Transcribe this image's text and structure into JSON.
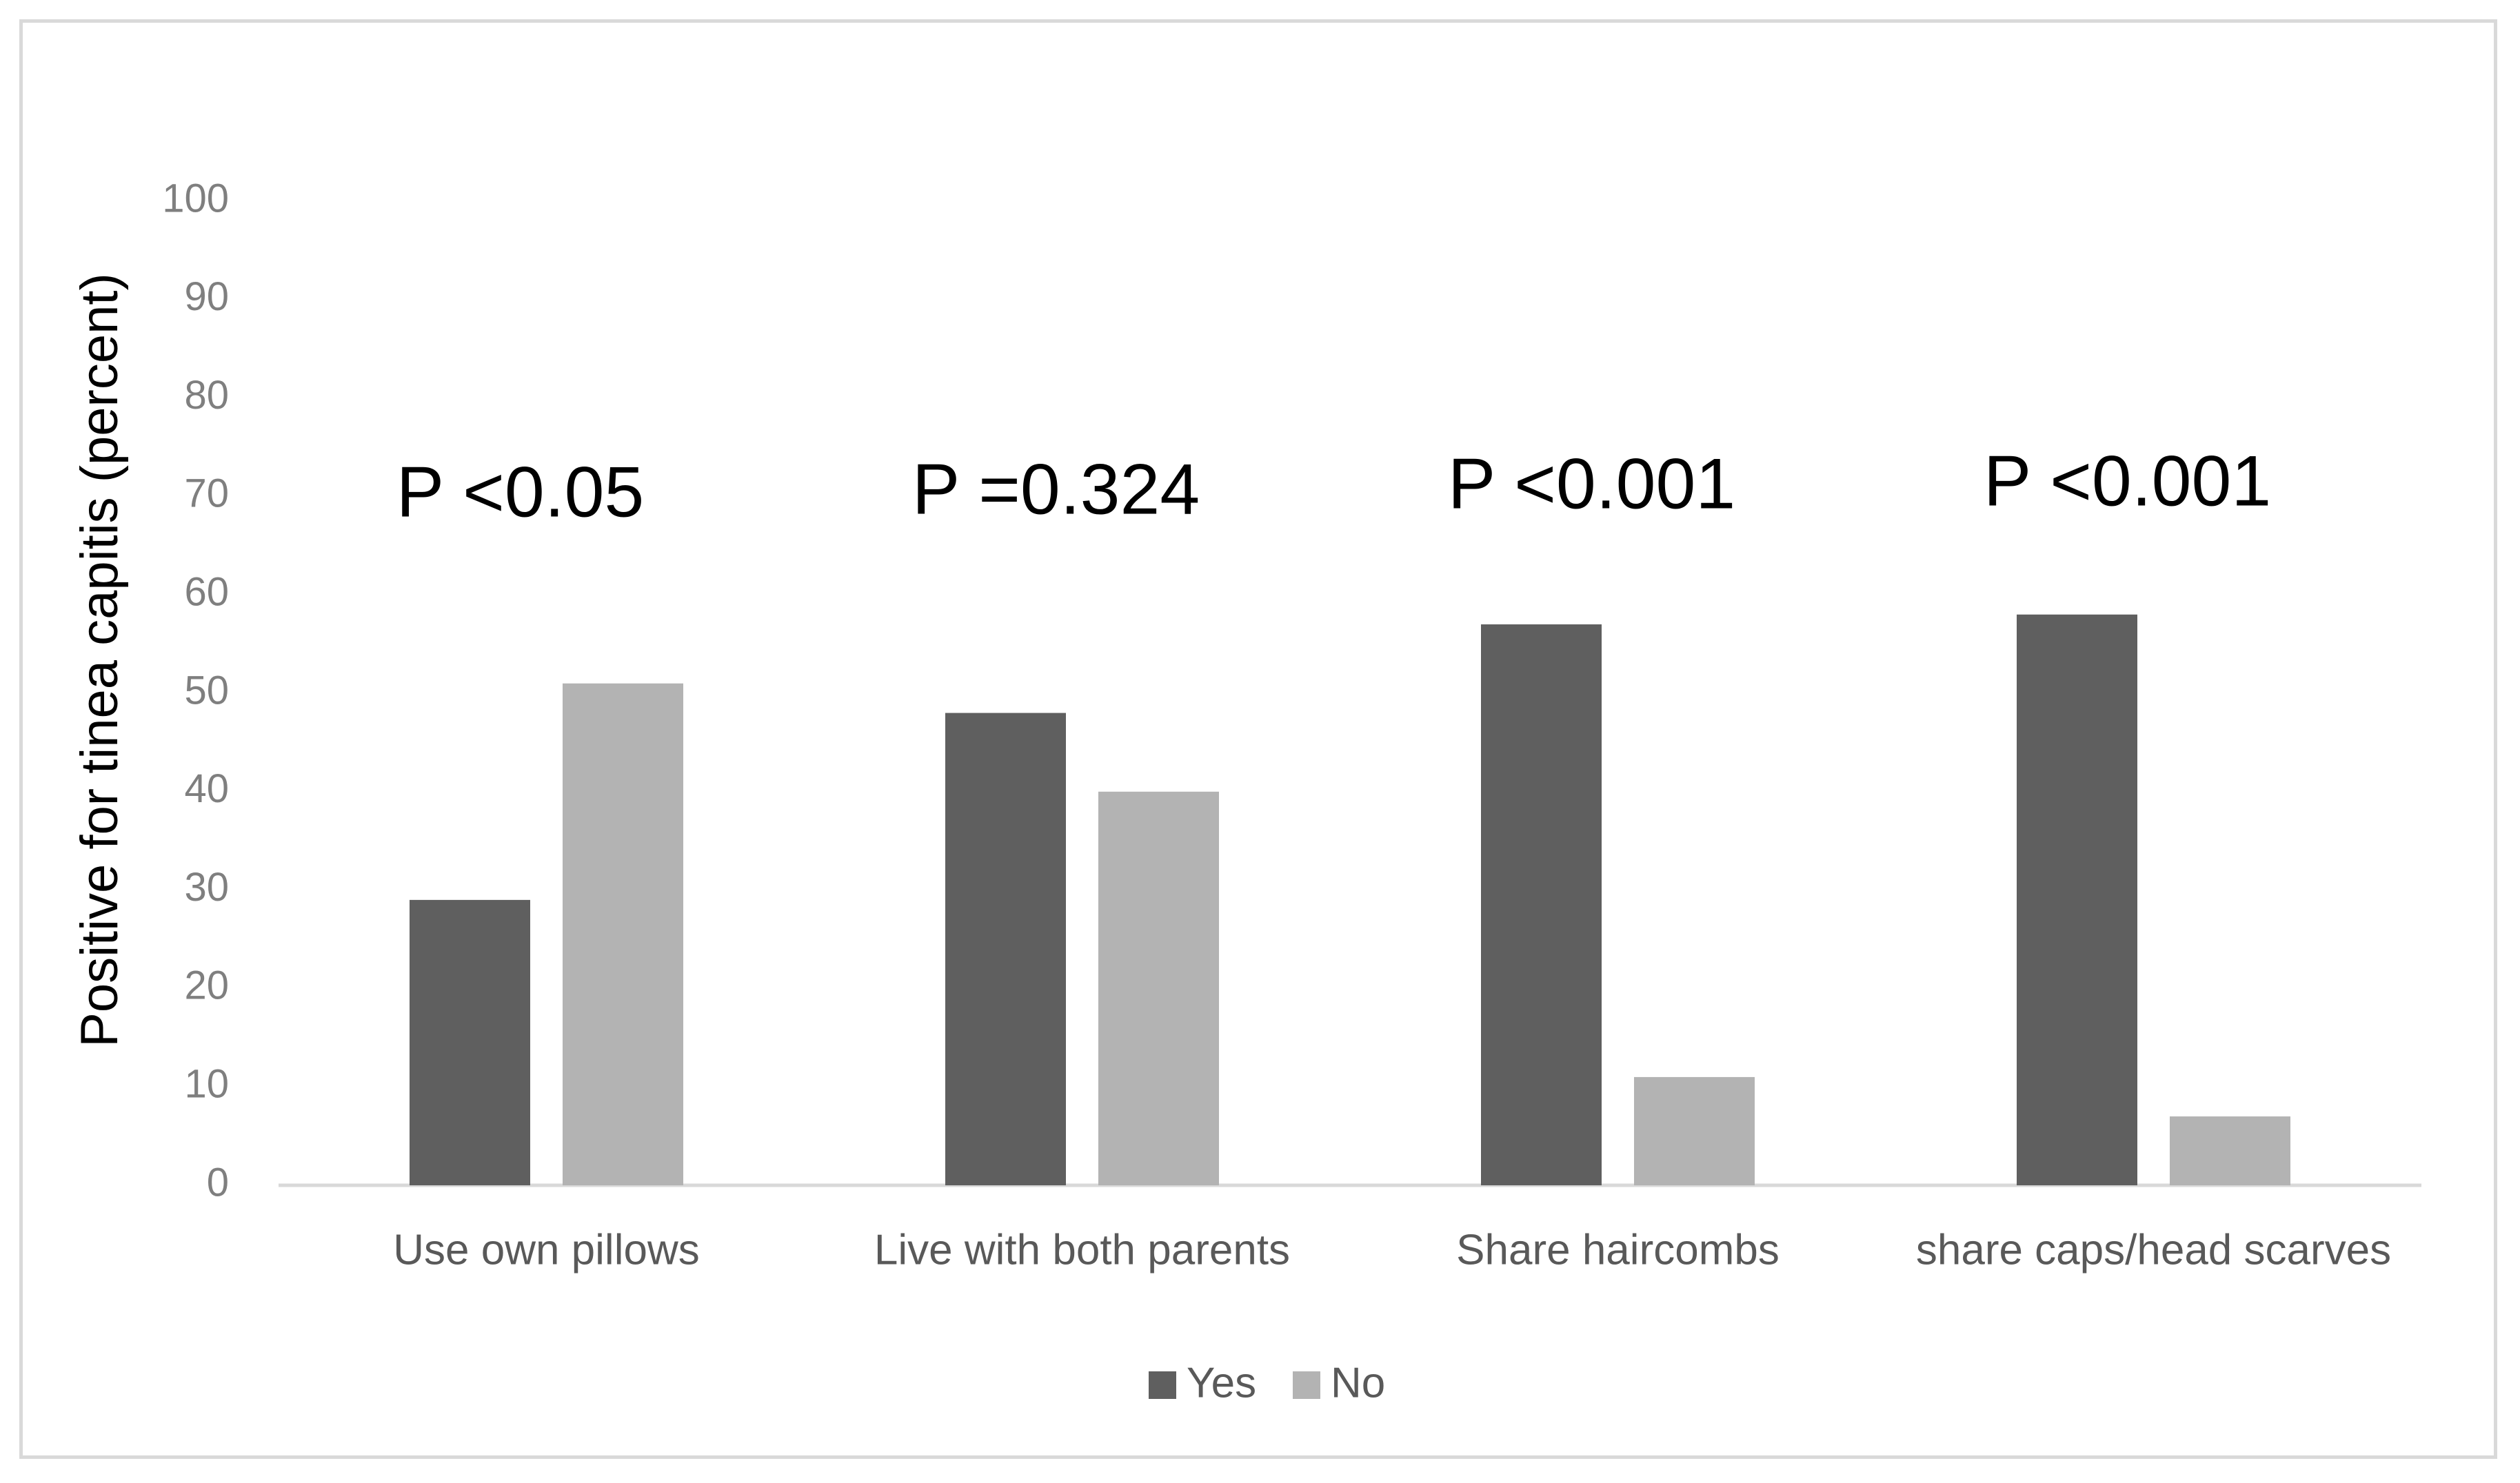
{
  "chart_data": {
    "type": "bar",
    "title": "",
    "xlabel": "",
    "ylabel": "Positive for tinea capitis (percent)",
    "ylim": [
      0,
      100
    ],
    "yticks": [
      0,
      10,
      20,
      30,
      40,
      50,
      60,
      70,
      80,
      90,
      100
    ],
    "categories": [
      "Use own pillows",
      "Live with both parents",
      "Share haircombs",
      "share caps/head scarves"
    ],
    "series": [
      {
        "name": "Yes",
        "values": [
          29,
          48,
          57,
          58
        ]
      },
      {
        "name": "No",
        "values": [
          51,
          40,
          11,
          7
        ]
      }
    ],
    "annotations": [
      "P <0.05",
      "P =0.324",
      "P <0.001",
      "P <0.001"
    ],
    "legend_position": "bottom",
    "grid": false,
    "colors": {
      "Yes": "#5f5f5f",
      "No": "#b3b3b3",
      "axis": "#d9d9d9",
      "tick_text": "#7f7f7f"
    }
  }
}
